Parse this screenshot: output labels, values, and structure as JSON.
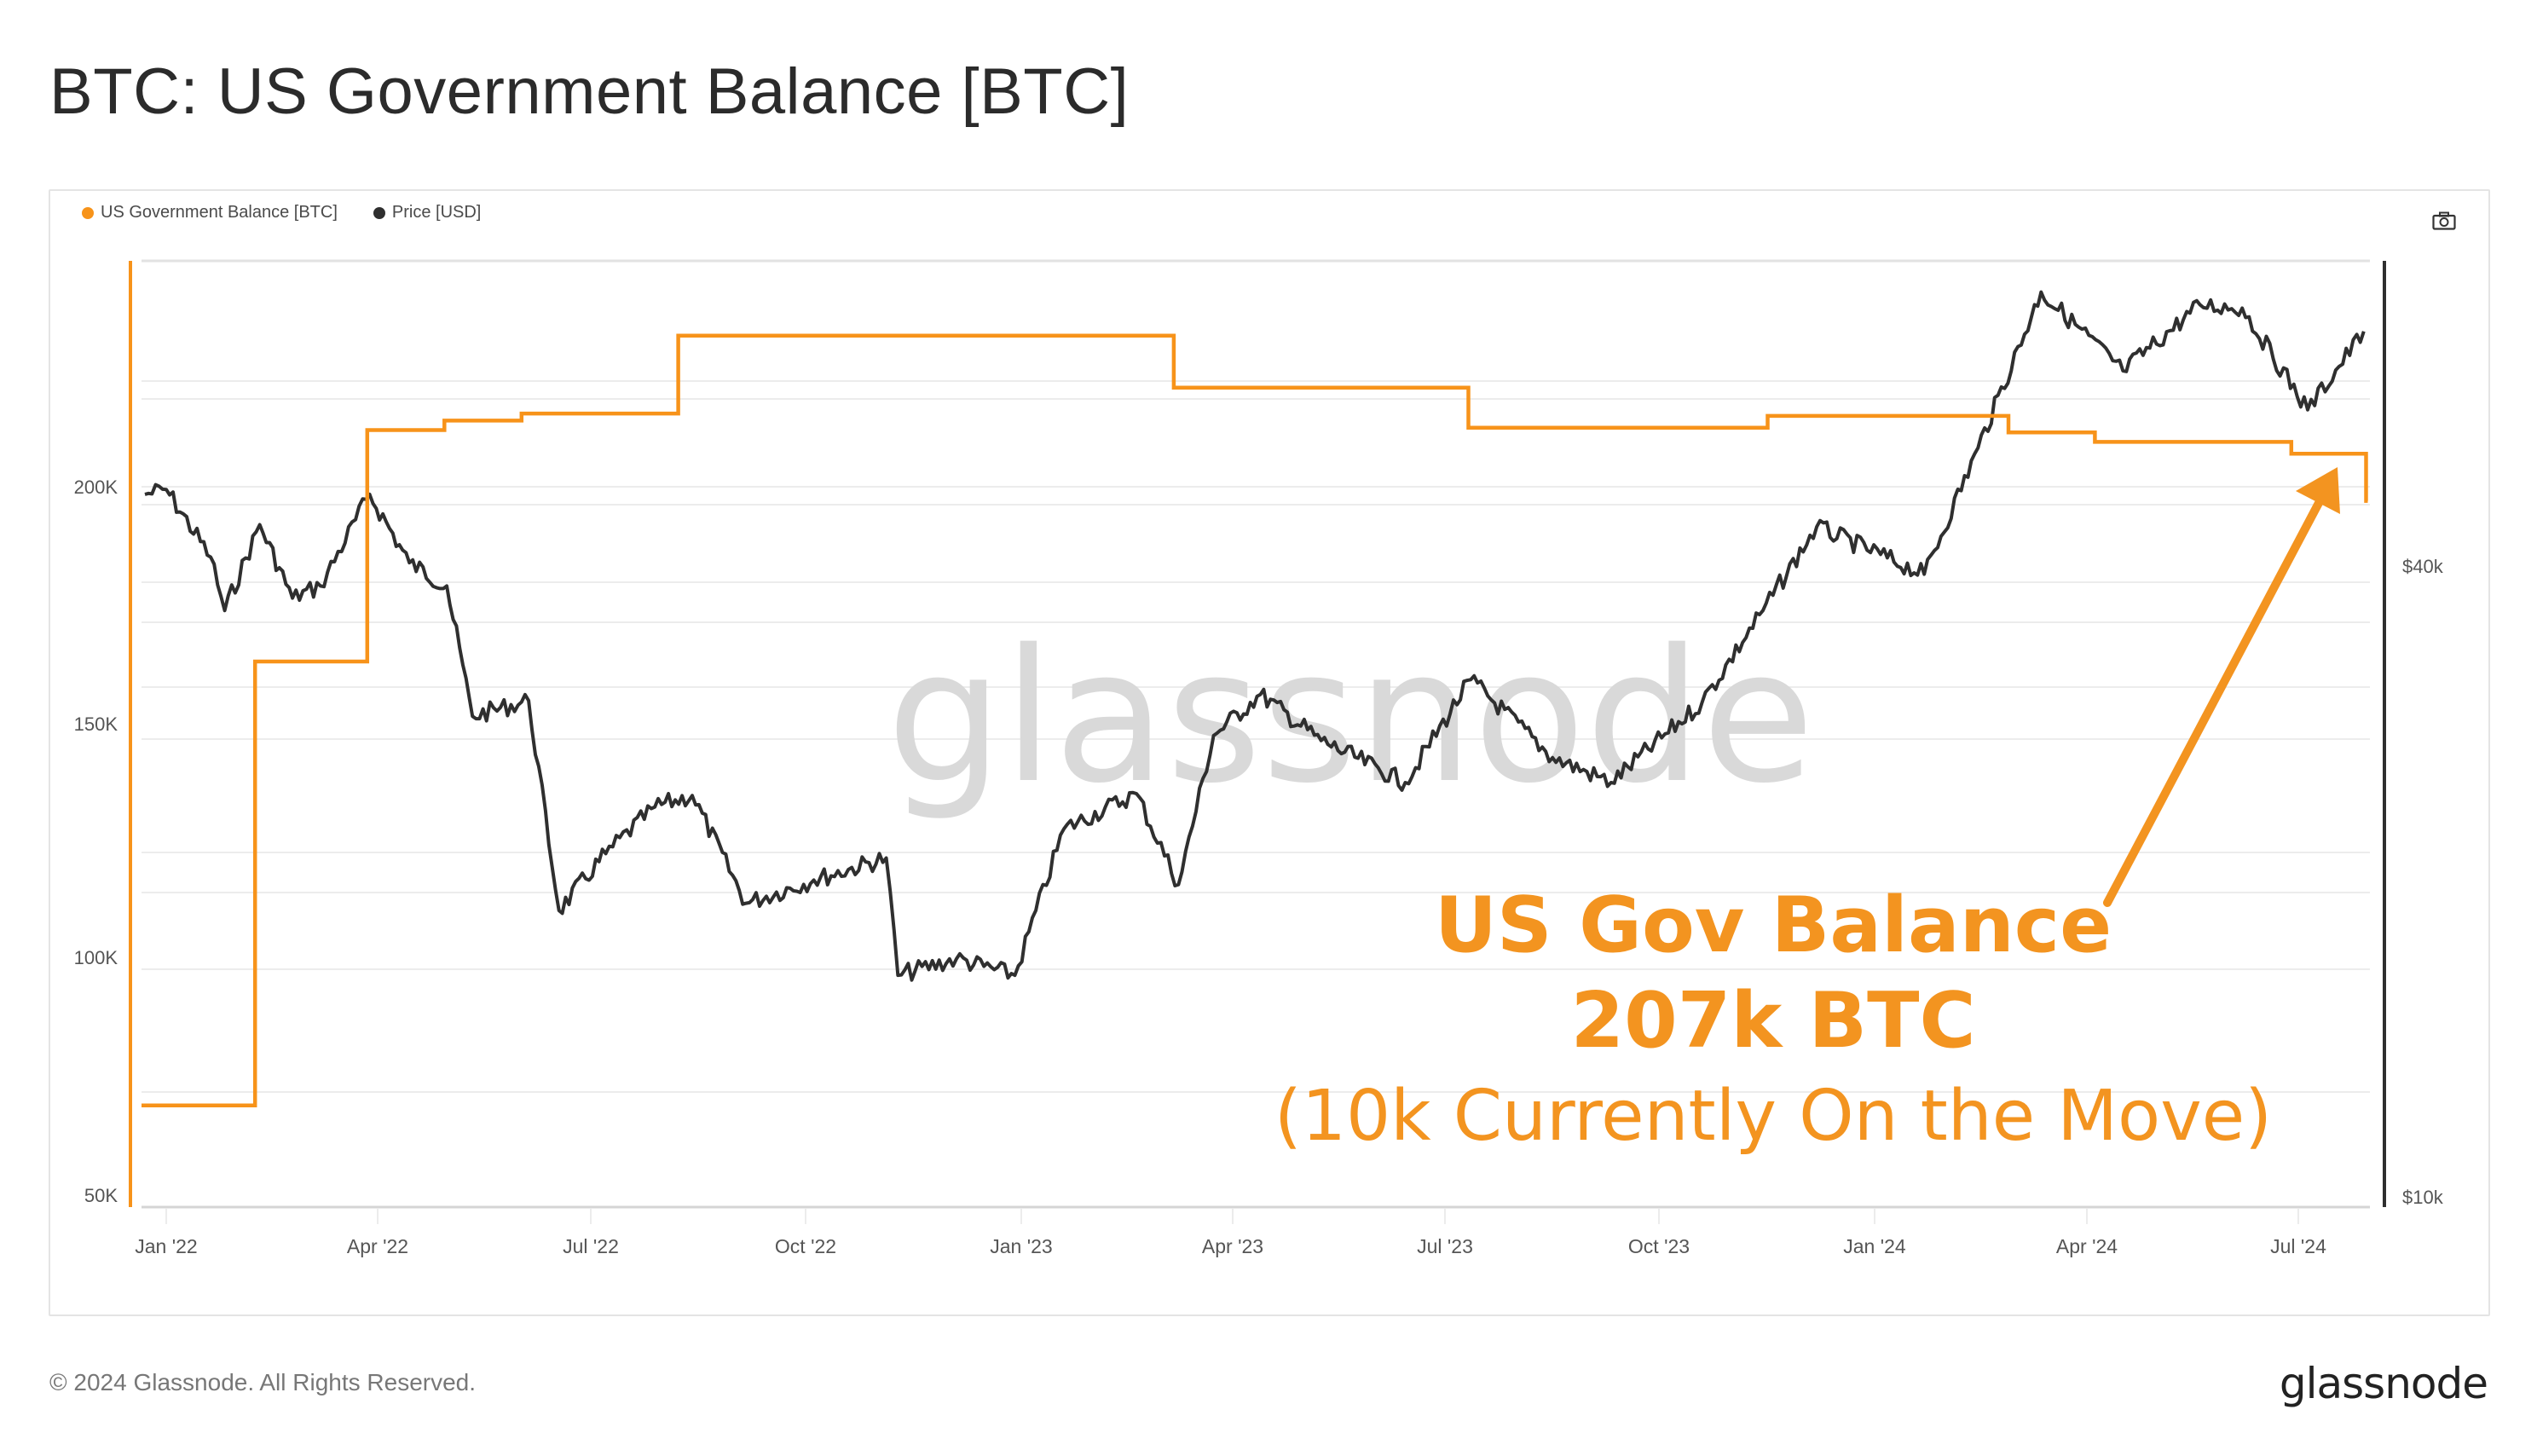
{
  "page": {
    "title": "BTC: US Government Balance [BTC]",
    "footer": "© 2024 Glassnode. All Rights Reserved.",
    "brand": "glassnode",
    "watermark": "glassnode"
  },
  "legend": [
    {
      "label": "US Government Balance [BTC]",
      "color": "#f7931a"
    },
    {
      "label": "Price [USD]",
      "color": "#2f2f2f"
    }
  ],
  "toolbar": {
    "screenshot_icon": "camera-icon"
  },
  "annotation": {
    "line1": "US Gov Balance",
    "line2": "207k BTC",
    "line3": "(10k Currently On the Move)",
    "color": "#f39420"
  },
  "axes": {
    "left_ticks": [
      "200K",
      "150K",
      "100K",
      "50K"
    ],
    "right_ticks": [
      "$40k",
      "$10k"
    ],
    "x_ticks": [
      "Jan '22",
      "Apr '22",
      "Jul '22",
      "Oct '22",
      "Jan '23",
      "Apr '23",
      "Jul '23",
      "Oct '23",
      "Jan '24",
      "Apr '24",
      "Jul '24"
    ]
  },
  "chart_data": {
    "type": "line",
    "title": "BTC: US Government Balance [BTC]",
    "xlabel": "",
    "ylabel_left": "US Government Balance [BTC]",
    "ylabel_right": "Price [USD] (log scale)",
    "ylim_left": [
      50000,
      250000
    ],
    "ylim_right_log": [
      10000,
      80000
    ],
    "grid": true,
    "legend_position": "top-left",
    "x_tick_labels": [
      "Jan '22",
      "Apr '22",
      "Jul '22",
      "Oct '22",
      "Jan '23",
      "Apr '23",
      "Jul '23",
      "Oct '23",
      "Jan '24",
      "Apr '24",
      "Jul '24"
    ],
    "series": [
      {
        "name": "US Government Balance [BTC]",
        "color": "#f7931a",
        "step": true,
        "points": [
          {
            "date": "2021-12-15",
            "value": 69000
          },
          {
            "date": "2022-02-08",
            "value": 163000
          },
          {
            "date": "2022-03-28",
            "value": 212000
          },
          {
            "date": "2022-04-30",
            "value": 214000
          },
          {
            "date": "2022-06-02",
            "value": 215500
          },
          {
            "date": "2022-08-08",
            "value": 232000
          },
          {
            "date": "2023-03-08",
            "value": 221000
          },
          {
            "date": "2023-07-12",
            "value": 212500
          },
          {
            "date": "2023-11-17",
            "value": 215000
          },
          {
            "date": "2024-02-28",
            "value": 211500
          },
          {
            "date": "2024-04-05",
            "value": 209500
          },
          {
            "date": "2024-06-28",
            "value": 207000
          },
          {
            "date": "2024-07-30",
            "value": 197000
          }
        ]
      },
      {
        "name": "Price [USD]",
        "color": "#2f2f2f",
        "points": [
          {
            "date": "2021-12-15",
            "value": 47000
          },
          {
            "date": "2022-01-01",
            "value": 47500
          },
          {
            "date": "2022-01-20",
            "value": 41000
          },
          {
            "date": "2022-01-26",
            "value": 36500
          },
          {
            "date": "2022-02-10",
            "value": 44000
          },
          {
            "date": "2022-02-24",
            "value": 37500
          },
          {
            "date": "2022-03-08",
            "value": 38500
          },
          {
            "date": "2022-03-29",
            "value": 47000
          },
          {
            "date": "2022-04-15",
            "value": 40500
          },
          {
            "date": "2022-05-01",
            "value": 38500
          },
          {
            "date": "2022-05-12",
            "value": 29000
          },
          {
            "date": "2022-06-05",
            "value": 30000
          },
          {
            "date": "2022-06-18",
            "value": 19000
          },
          {
            "date": "2022-07-08",
            "value": 21500
          },
          {
            "date": "2022-07-29",
            "value": 23800
          },
          {
            "date": "2022-08-14",
            "value": 24400
          },
          {
            "date": "2022-09-06",
            "value": 19300
          },
          {
            "date": "2022-10-05",
            "value": 20300
          },
          {
            "date": "2022-11-05",
            "value": 21300
          },
          {
            "date": "2022-11-10",
            "value": 16500
          },
          {
            "date": "2022-12-05",
            "value": 17100
          },
          {
            "date": "2022-12-30",
            "value": 16500
          },
          {
            "date": "2023-01-20",
            "value": 22700
          },
          {
            "date": "2023-02-20",
            "value": 24500
          },
          {
            "date": "2023-03-10",
            "value": 20100
          },
          {
            "date": "2023-03-25",
            "value": 27800
          },
          {
            "date": "2023-04-14",
            "value": 30400
          },
          {
            "date": "2023-05-10",
            "value": 27500
          },
          {
            "date": "2023-06-15",
            "value": 25100
          },
          {
            "date": "2023-07-13",
            "value": 31400
          },
          {
            "date": "2023-08-17",
            "value": 26500
          },
          {
            "date": "2023-09-11",
            "value": 25100
          },
          {
            "date": "2023-10-20",
            "value": 29900
          },
          {
            "date": "2023-11-15",
            "value": 36500
          },
          {
            "date": "2023-12-08",
            "value": 43800
          },
          {
            "date": "2024-01-23",
            "value": 39500
          },
          {
            "date": "2024-02-15",
            "value": 52000
          },
          {
            "date": "2024-03-13",
            "value": 73000
          },
          {
            "date": "2024-04-17",
            "value": 61500
          },
          {
            "date": "2024-05-20",
            "value": 71000
          },
          {
            "date": "2024-06-07",
            "value": 70500
          },
          {
            "date": "2024-07-05",
            "value": 56500
          },
          {
            "date": "2024-07-29",
            "value": 67000
          }
        ]
      }
    ]
  }
}
